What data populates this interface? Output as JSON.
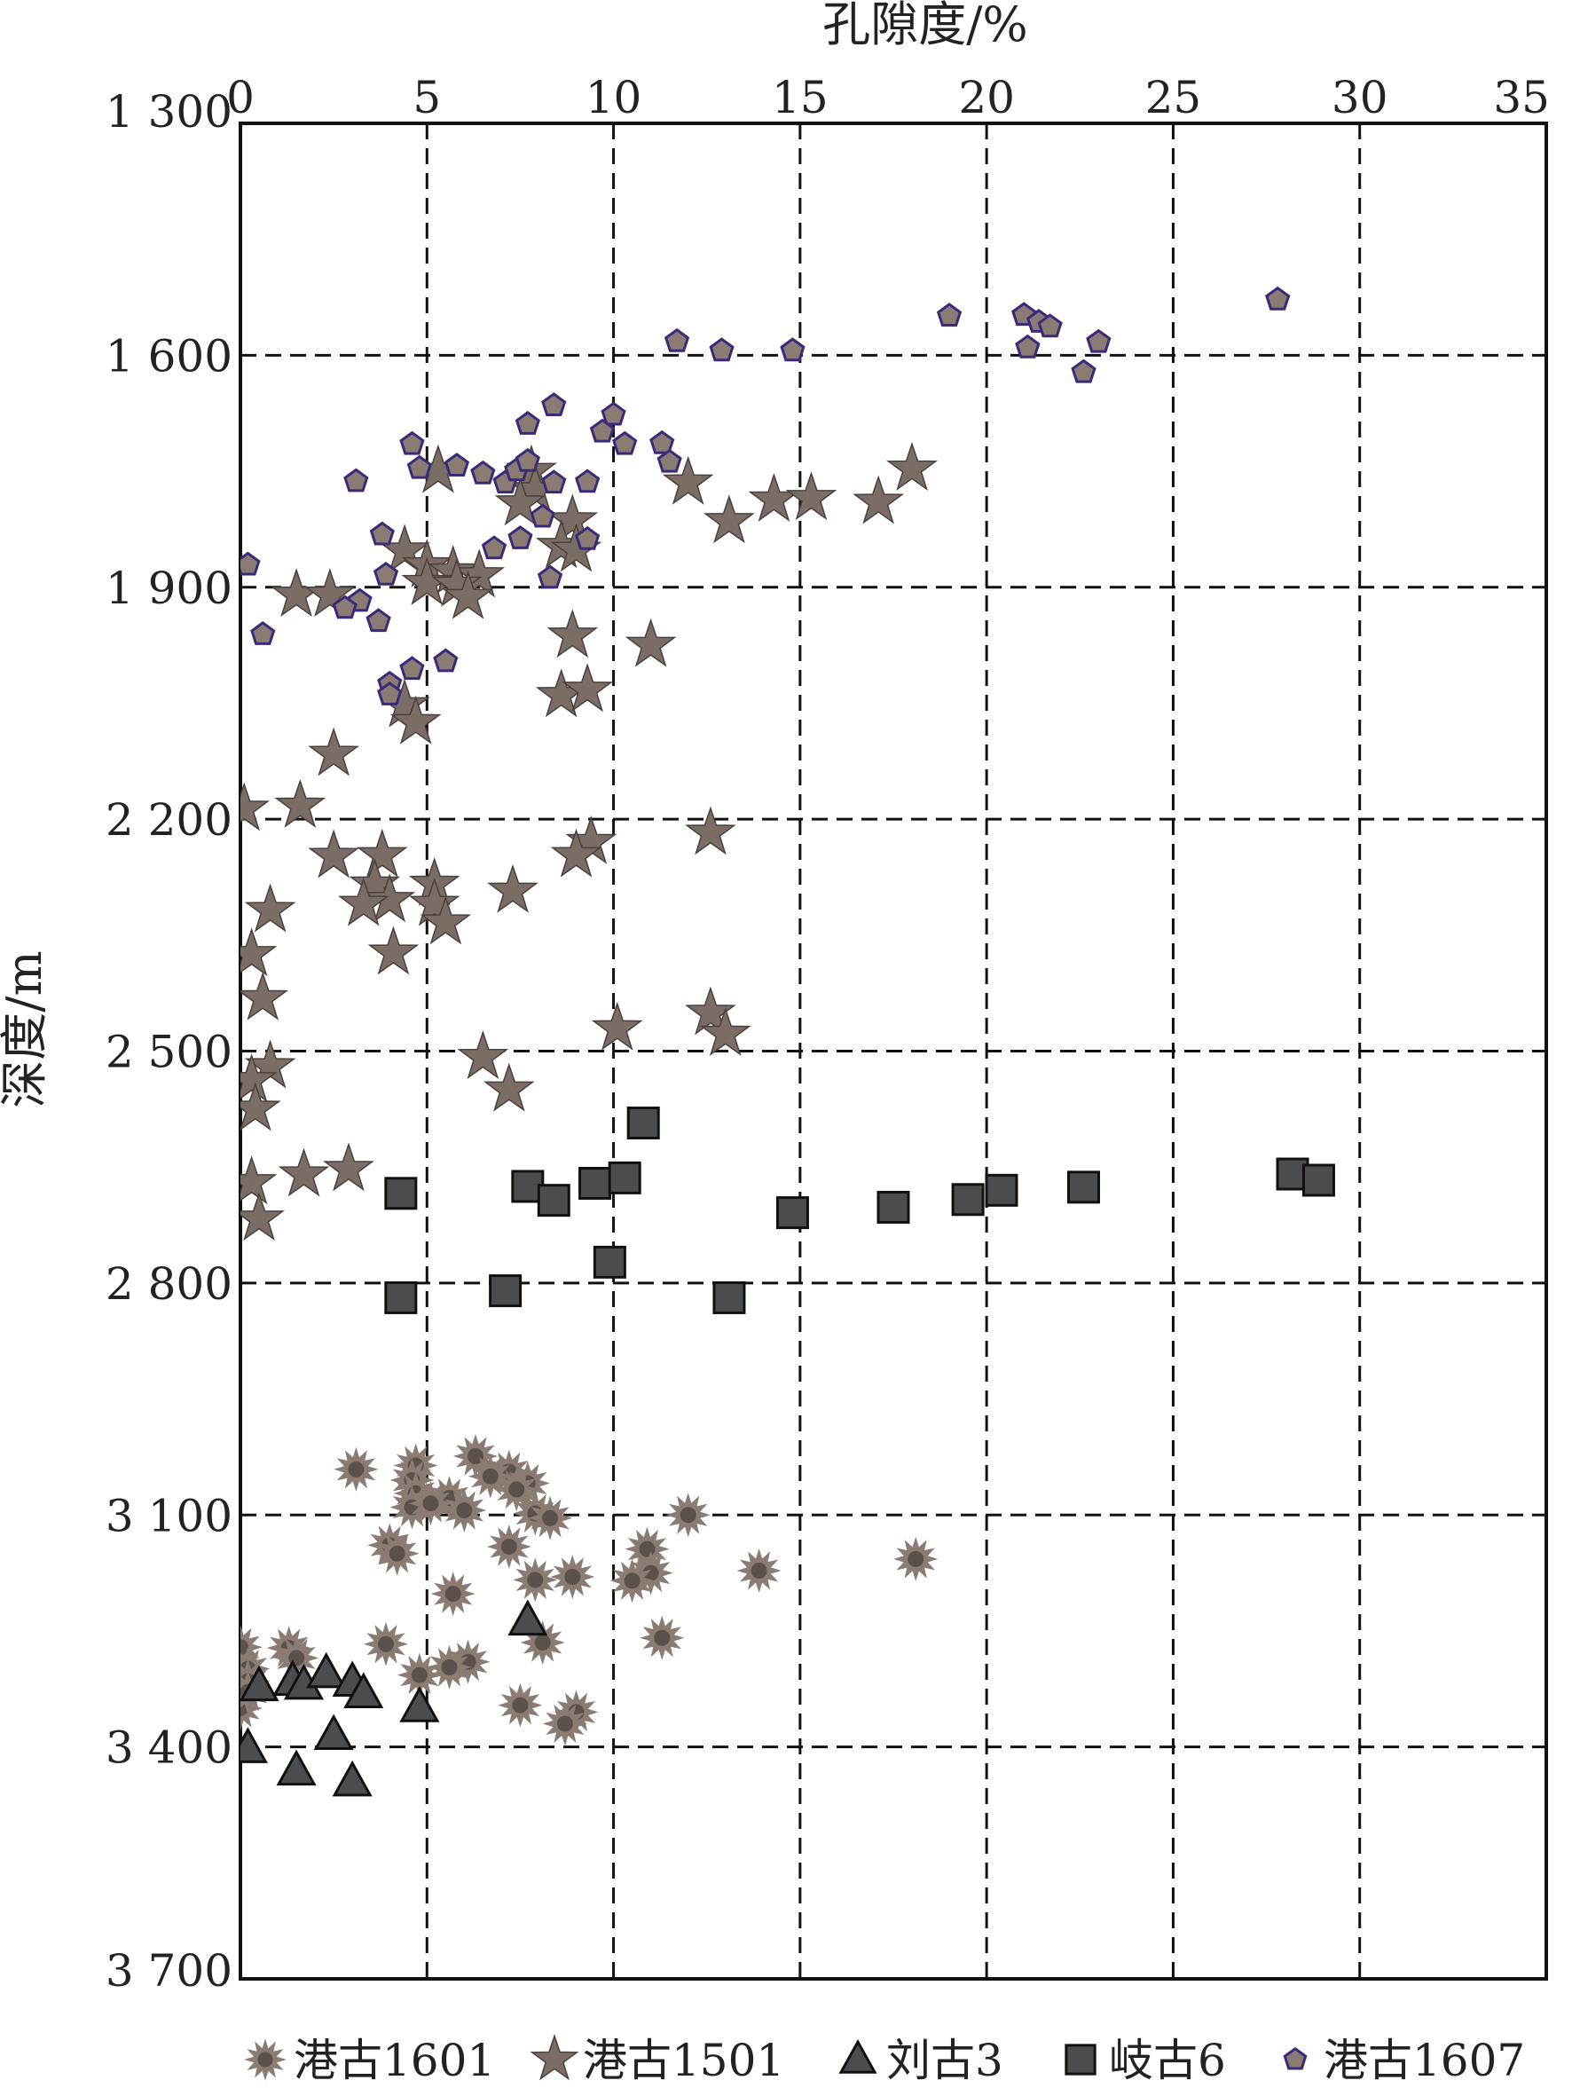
{
  "chart_data": {
    "type": "scatter",
    "xlabel": "孔隙度/%",
    "ylabel": "深度/m",
    "xlim": [
      0,
      35
    ],
    "ylim": [
      1300,
      3700
    ],
    "y_inverted": true,
    "x_ticks": [
      "0",
      "5",
      "10",
      "15",
      "20",
      "25",
      "30",
      "35"
    ],
    "y_ticks": [
      "1 300",
      "1 600",
      "1 900",
      "2 200",
      "2 500",
      "2 800",
      "3 100",
      "3 400",
      "3 700"
    ],
    "grid": true,
    "x_axis_position": "top",
    "legend_position": "bottom",
    "series": [
      {
        "name": "港古1601",
        "marker": "sunburst",
        "color": "#8a7b73",
        "points": [
          [
            3.1,
            3041
          ],
          [
            4.7,
            3036
          ],
          [
            4.6,
            3055
          ],
          [
            6.3,
            3024
          ],
          [
            7.2,
            3044
          ],
          [
            7.7,
            3059
          ],
          [
            6.7,
            3050
          ],
          [
            7.4,
            3067
          ],
          [
            4.7,
            3072
          ],
          [
            5.6,
            3078
          ],
          [
            4.6,
            3090
          ],
          [
            5.1,
            3085
          ],
          [
            6.0,
            3094
          ],
          [
            7.9,
            3098
          ],
          [
            8.3,
            3104
          ],
          [
            12.0,
            3100
          ],
          [
            4.0,
            3139
          ],
          [
            4.2,
            3150
          ],
          [
            7.2,
            3141
          ],
          [
            10.9,
            3144
          ],
          [
            18.1,
            3157
          ],
          [
            13.9,
            3172
          ],
          [
            11.0,
            3175
          ],
          [
            8.9,
            3180
          ],
          [
            7.9,
            3184
          ],
          [
            10.5,
            3185
          ],
          [
            5.7,
            3202
          ],
          [
            0,
            3271
          ],
          [
            1.3,
            3272
          ],
          [
            1.5,
            3285
          ],
          [
            3.9,
            3267
          ],
          [
            8.1,
            3265
          ],
          [
            11.3,
            3259
          ],
          [
            6.1,
            3290
          ],
          [
            5.6,
            3297
          ],
          [
            4.8,
            3307
          ],
          [
            0.2,
            3299
          ],
          [
            0.2,
            3315
          ],
          [
            7.5,
            3346
          ],
          [
            9.0,
            3355
          ],
          [
            8.7,
            3370
          ],
          [
            0,
            3350
          ],
          [
            0.2,
            3329
          ]
        ]
      },
      {
        "name": "港古1501",
        "marker": "star",
        "color": "#7a6d66",
        "points": [
          [
            18.0,
            1747
          ],
          [
            12.0,
            1765
          ],
          [
            14.3,
            1787
          ],
          [
            15.3,
            1785
          ],
          [
            17.1,
            1790
          ],
          [
            13.1,
            1815
          ],
          [
            7.8,
            1750
          ],
          [
            7.9,
            1775
          ],
          [
            7.5,
            1792
          ],
          [
            5.3,
            1750
          ],
          [
            8.9,
            1814
          ],
          [
            8.6,
            1847
          ],
          [
            9.0,
            1852
          ],
          [
            4.4,
            1853
          ],
          [
            5.0,
            1872
          ],
          [
            5.7,
            1880
          ],
          [
            6.4,
            1885
          ],
          [
            5.0,
            1895
          ],
          [
            5.8,
            1897
          ],
          [
            1.5,
            1910
          ],
          [
            2.4,
            1910
          ],
          [
            6.1,
            1913
          ],
          [
            8.9,
            1963
          ],
          [
            11.0,
            1975
          ],
          [
            8.6,
            2040
          ],
          [
            9.3,
            2033
          ],
          [
            4.4,
            2053
          ],
          [
            4.7,
            2075
          ],
          [
            2.5,
            2116
          ],
          [
            0.1,
            2187
          ],
          [
            1.6,
            2183
          ],
          [
            12.6,
            2218
          ],
          [
            9.4,
            2230
          ],
          [
            9.0,
            2247
          ],
          [
            2.5,
            2248
          ],
          [
            3.8,
            2247
          ],
          [
            3.6,
            2285
          ],
          [
            5.2,
            2284
          ],
          [
            4.0,
            2305
          ],
          [
            3.3,
            2310
          ],
          [
            7.3,
            2293
          ],
          [
            5.2,
            2310
          ],
          [
            5.5,
            2334
          ],
          [
            0.8,
            2318
          ],
          [
            0.3,
            2375
          ],
          [
            0.6,
            2432
          ],
          [
            4.1,
            2373
          ],
          [
            10.1,
            2471
          ],
          [
            12.6,
            2451
          ],
          [
            13.0,
            2478
          ],
          [
            6.5,
            2508
          ],
          [
            7.2,
            2550
          ],
          [
            0.8,
            2520
          ],
          [
            0.3,
            2538
          ],
          [
            0.4,
            2575
          ],
          [
            1.7,
            2660
          ],
          [
            2.9,
            2653
          ],
          [
            0.3,
            2670
          ],
          [
            0.5,
            2717
          ]
        ]
      },
      {
        "name": "刘古3",
        "marker": "triangle",
        "color": "#4a4d50",
        "points": [
          [
            7.7,
            3237
          ],
          [
            0.5,
            3322
          ],
          [
            1.4,
            3315
          ],
          [
            1.7,
            3320
          ],
          [
            2.3,
            3305
          ],
          [
            3.0,
            3316
          ],
          [
            3.3,
            3331
          ],
          [
            4.8,
            3349
          ],
          [
            2.5,
            3385
          ],
          [
            0.2,
            3402
          ],
          [
            1.5,
            3431
          ],
          [
            3.0,
            3445
          ]
        ]
      },
      {
        "name": "岐古6",
        "marker": "square",
        "color": "#4a4d50",
        "points": [
          [
            10.8,
            2593
          ],
          [
            4.3,
            2684
          ],
          [
            7.7,
            2675
          ],
          [
            8.4,
            2693
          ],
          [
            9.5,
            2671
          ],
          [
            10.3,
            2664
          ],
          [
            14.8,
            2709
          ],
          [
            17.5,
            2702
          ],
          [
            19.5,
            2692
          ],
          [
            20.4,
            2680
          ],
          [
            22.6,
            2676
          ],
          [
            28.2,
            2659
          ],
          [
            28.9,
            2667
          ],
          [
            9.9,
            2773
          ],
          [
            7.1,
            2810
          ],
          [
            4.3,
            2819
          ],
          [
            13.1,
            2819
          ]
        ]
      },
      {
        "name": "港古1607",
        "marker": "pentagon",
        "color": "#3a2a7a",
        "points": [
          [
            27.8,
            1528
          ],
          [
            19.0,
            1549
          ],
          [
            21.0,
            1548
          ],
          [
            21.4,
            1557
          ],
          [
            21.7,
            1563
          ],
          [
            23.0,
            1583
          ],
          [
            11.7,
            1582
          ],
          [
            12.9,
            1594
          ],
          [
            14.8,
            1594
          ],
          [
            21.1,
            1590
          ],
          [
            22.6,
            1622
          ],
          [
            8.4,
            1665
          ],
          [
            10.0,
            1677
          ],
          [
            9.7,
            1699
          ],
          [
            10.3,
            1715
          ],
          [
            11.3,
            1714
          ],
          [
            11.5,
            1738
          ],
          [
            4.6,
            1715
          ],
          [
            7.7,
            1689
          ],
          [
            5.8,
            1743
          ],
          [
            4.8,
            1746
          ],
          [
            6.5,
            1753
          ],
          [
            7.1,
            1765
          ],
          [
            7.4,
            1749
          ],
          [
            7.7,
            1737
          ],
          [
            3.1,
            1763
          ],
          [
            8.4,
            1765
          ],
          [
            9.3,
            1764
          ],
          [
            8.1,
            1809
          ],
          [
            7.5,
            1837
          ],
          [
            9.3,
            1838
          ],
          [
            6.8,
            1850
          ],
          [
            3.8,
            1832
          ],
          [
            3.9,
            1884
          ],
          [
            0.2,
            1871
          ],
          [
            8.3,
            1888
          ],
          [
            3.2,
            1918
          ],
          [
            2.8,
            1927
          ],
          [
            3.7,
            1944
          ],
          [
            0.6,
            1961
          ],
          [
            5.5,
            1996
          ],
          [
            4.6,
            2006
          ],
          [
            4.0,
            2025
          ],
          [
            4.0,
            2039
          ]
        ]
      }
    ]
  }
}
